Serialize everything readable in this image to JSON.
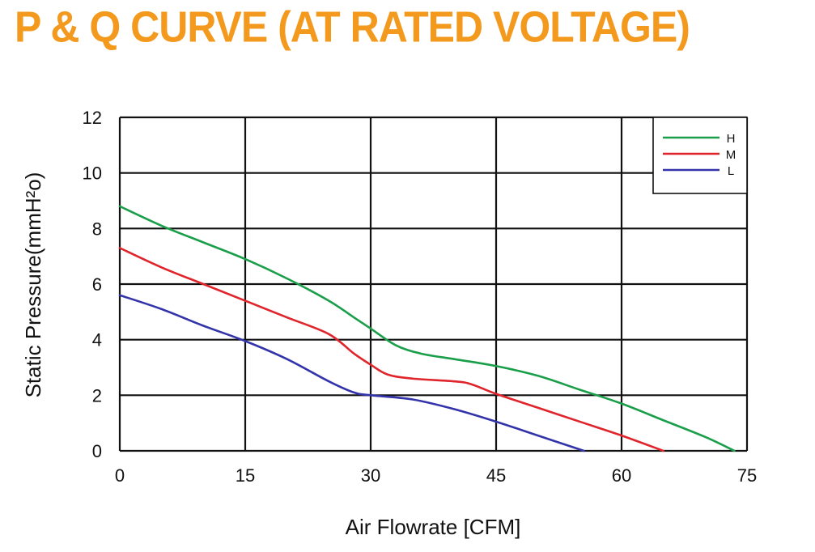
{
  "title": "P & Q CURVE (AT RATED VOLTAGE)",
  "chart_data": {
    "type": "line",
    "title": "P & Q CURVE (AT RATED VOLTAGE)",
    "xlabel": "Air  Flowrate   [CFM]",
    "ylabel": "Static Pressure(mmH²o)",
    "xlim": [
      0,
      75
    ],
    "ylim": [
      0,
      12
    ],
    "xticks": [
      0,
      15,
      30,
      45,
      60,
      75
    ],
    "yticks": [
      0,
      2,
      4,
      6,
      8,
      10,
      12
    ],
    "grid": true,
    "legend_position": "top-right",
    "series": [
      {
        "name": "H",
        "color": "#1a9e4a",
        "x": [
          0,
          5,
          10,
          15,
          20,
          25,
          28,
          30,
          33,
          36,
          40,
          45,
          50,
          55,
          60,
          65,
          70,
          73.5
        ],
        "y": [
          8.8,
          8.1,
          7.5,
          6.9,
          6.2,
          5.4,
          4.8,
          4.4,
          3.8,
          3.5,
          3.3,
          3.05,
          2.7,
          2.2,
          1.7,
          1.1,
          0.5,
          0
        ]
      },
      {
        "name": "M",
        "color": "#e0242b",
        "x": [
          0,
          5,
          10,
          15,
          20,
          25,
          28,
          30,
          32,
          35,
          40,
          42,
          45,
          50,
          55,
          60,
          65
        ],
        "y": [
          7.3,
          6.6,
          6.0,
          5.4,
          4.8,
          4.2,
          3.5,
          3.1,
          2.75,
          2.6,
          2.5,
          2.4,
          2.05,
          1.55,
          1.05,
          0.55,
          0
        ]
      },
      {
        "name": "L",
        "color": "#3333aa",
        "x": [
          0,
          5,
          10,
          15,
          20,
          25,
          28,
          30,
          35,
          40,
          45,
          50,
          55.5
        ],
        "y": [
          5.6,
          5.1,
          4.5,
          3.95,
          3.3,
          2.5,
          2.1,
          2.0,
          1.85,
          1.5,
          1.05,
          0.55,
          0
        ]
      }
    ]
  }
}
